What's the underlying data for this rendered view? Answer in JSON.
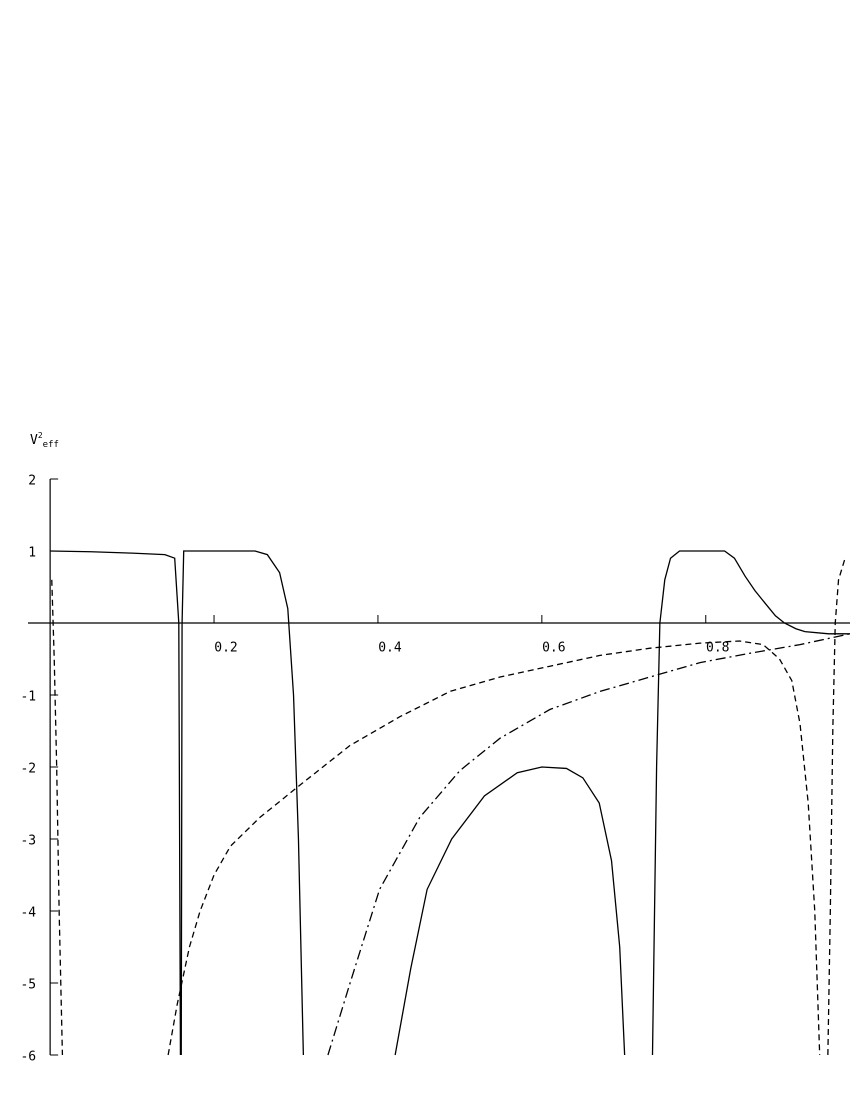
{
  "chart_data": {
    "type": "line",
    "ylabel": {
      "base": "V",
      "sup": "2",
      "sub": "eff"
    },
    "xlim": [
      -0.027,
      0.976
    ],
    "ylim": [
      -6,
      2
    ],
    "xticks": [
      0.2,
      0.4,
      0.6,
      0.8
    ],
    "yticks": [
      -6,
      -5,
      -4,
      -3,
      -2,
      -1,
      1,
      2
    ],
    "series": [
      {
        "color": "#000000",
        "style": "solid",
        "x": [
          0,
          0.05,
          0.1,
          0.14,
          0.152,
          0.157,
          0.159,
          0.1595,
          0.16,
          0.161,
          0.163,
          0.2,
          0.25,
          0.265,
          0.28,
          0.29,
          0.297,
          0.303,
          0.309,
          0.36,
          0.421,
          0.44,
          0.46,
          0.49,
          0.53,
          0.57,
          0.6,
          0.63,
          0.65,
          0.67,
          0.685,
          0.695,
          0.701,
          0.72,
          0.735,
          0.74,
          0.744,
          0.75,
          0.757,
          0.768,
          0.823,
          0.835,
          0.848,
          0.86,
          0.872,
          0.885,
          0.896,
          0.91,
          0.921,
          0.95,
          0.976
        ],
        "values": [
          1,
          0.99,
          0.97,
          0.95,
          0.9,
          0,
          -6,
          null,
          -6,
          0,
          1,
          1,
          1,
          0.95,
          0.7,
          0.2,
          -1,
          -3,
          -6,
          null,
          -6,
          -4.8,
          -3.7,
          -3.0,
          -2.4,
          -2.08,
          -2.0,
          -2.02,
          -2.15,
          -2.5,
          -3.3,
          -4.5,
          -6,
          null,
          -6,
          -2,
          0,
          0.6,
          0.9,
          1,
          1,
          0.9,
          0.65,
          0.45,
          0.28,
          0.1,
          0,
          -0.08,
          -0.12,
          -0.15,
          -0.15
        ]
      },
      {
        "color": "#000000",
        "style": "dashed",
        "x": [
          0.002,
          0.005,
          0.008,
          0.011,
          0.015,
          0.08,
          0.144,
          0.155,
          0.17,
          0.183,
          0.2,
          0.22,
          0.256,
          0.305,
          0.366,
          0.427,
          0.488,
          0.549,
          0.61,
          0.671,
          0.732,
          0.793,
          0.841,
          0.87,
          0.89,
          0.905,
          0.915,
          0.925,
          0.933,
          0.939,
          0.944,
          0.949,
          0.952,
          0.955,
          0.958,
          0.962,
          0.97
        ],
        "values": [
          0.6,
          -0.5,
          -2,
          -4,
          -6,
          null,
          -6,
          -5.3,
          -4.5,
          -4.0,
          -3.5,
          -3.1,
          -2.7,
          -2.25,
          -1.7,
          -1.3,
          -0.95,
          -0.75,
          -0.6,
          -0.45,
          -0.35,
          -0.28,
          -0.25,
          -0.3,
          -0.5,
          -0.8,
          -1.4,
          -2.5,
          -4,
          -6,
          null,
          -6,
          -4,
          -1.5,
          0,
          0.6,
          0.9
        ]
      },
      {
        "color": "#000000",
        "style": "dashdot",
        "x": [
          0.339,
          0.366,
          0.402,
          0.451,
          0.5,
          0.549,
          0.61,
          0.671,
          0.732,
          0.793,
          0.854,
          0.915,
          0.976
        ],
        "values": [
          -6,
          -5.0,
          -3.7,
          -2.7,
          -2.05,
          -1.6,
          -1.2,
          -0.95,
          -0.75,
          -0.55,
          -0.42,
          -0.3,
          -0.15
        ]
      }
    ]
  }
}
